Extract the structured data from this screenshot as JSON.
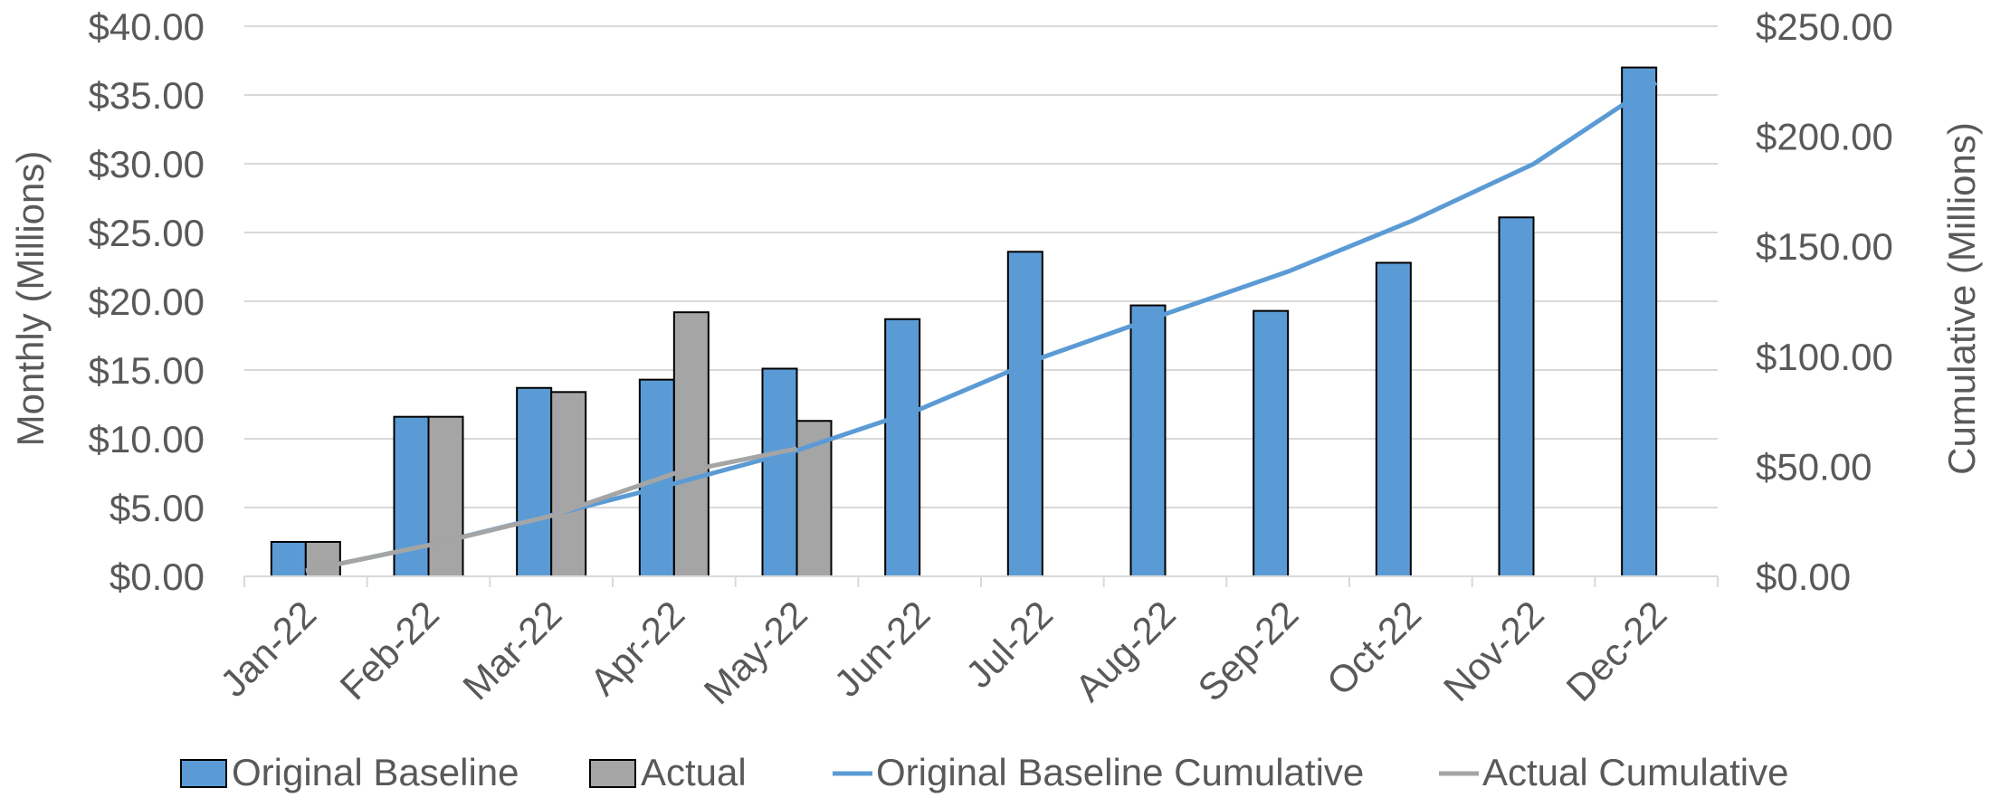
{
  "chart_data": {
    "type": "bar",
    "categories": [
      "Jan-22",
      "Feb-22",
      "Mar-22",
      "Apr-22",
      "May-22",
      "Jun-22",
      "Jul-22",
      "Aug-22",
      "Sep-22",
      "Oct-22",
      "Nov-22",
      "Dec-22"
    ],
    "series": [
      {
        "name": "Original Baseline",
        "type": "bar",
        "axis": "left",
        "color": "#5b9bd5",
        "values": [
          2.5,
          11.6,
          13.7,
          14.3,
          15.1,
          18.7,
          23.6,
          19.7,
          19.3,
          22.8,
          26.1,
          37.0
        ]
      },
      {
        "name": "Actual",
        "type": "bar",
        "axis": "left",
        "color": "#a5a5a5",
        "values": [
          2.5,
          11.6,
          13.4,
          19.2,
          11.3,
          null,
          null,
          null,
          null,
          null,
          null,
          null
        ]
      },
      {
        "name": "Original Baseline Cumulative",
        "type": "line",
        "axis": "right",
        "color": "#5b9bd5",
        "values": [
          2.5,
          14.1,
          27.8,
          42.1,
          57.2,
          75.9,
          99.5,
          119.2,
          138.5,
          161.3,
          187.4,
          224.4
        ]
      },
      {
        "name": "Actual Cumulative",
        "type": "line",
        "axis": "right",
        "color": "#a5a5a5",
        "values": [
          2.5,
          14.1,
          27.5,
          46.7,
          58.0,
          null,
          null,
          null,
          null,
          null,
          null,
          null
        ]
      }
    ],
    "ylabel": "Monthly (Millions)",
    "y2label": "Cumulative (Millions)",
    "ylim": [
      0,
      40
    ],
    "y2lim": [
      0,
      250
    ],
    "yticks": [
      "$0.00",
      "$5.00",
      "$10.00",
      "$15.00",
      "$20.00",
      "$25.00",
      "$30.00",
      "$35.00",
      "$40.00"
    ],
    "y2ticks": [
      "$0.00",
      "$50.00",
      "$100.00",
      "$150.00",
      "$200.00",
      "$250.00"
    ],
    "grid": true,
    "legend_position": "bottom"
  }
}
